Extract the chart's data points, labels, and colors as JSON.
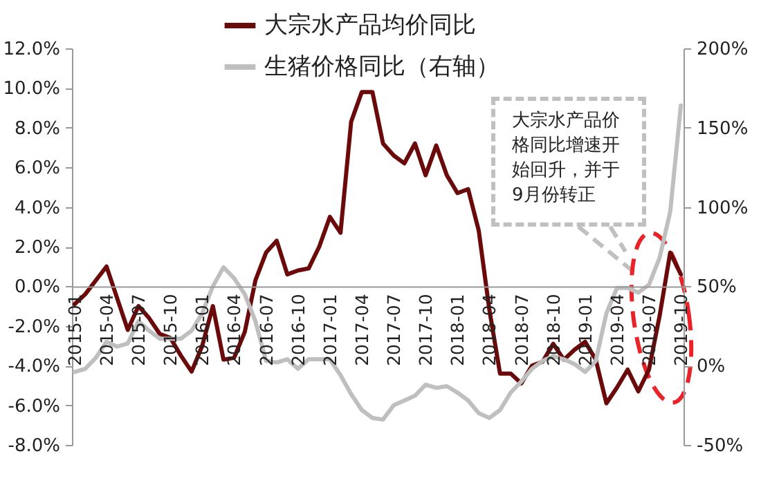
{
  "chart_data": {
    "type": "line",
    "categories": [
      "2015-01",
      null,
      null,
      "2015-04",
      null,
      null,
      "2015-07",
      null,
      null,
      "2015-10",
      null,
      null,
      "2016-01",
      null,
      null,
      "2016-04",
      null,
      null,
      "2016-07",
      null,
      null,
      "2016-10",
      null,
      null,
      "2017-01",
      null,
      null,
      "2017-04",
      null,
      null,
      "2017-07",
      null,
      null,
      "2017-10",
      null,
      null,
      "2018-01",
      null,
      null,
      "2018-04",
      null,
      null,
      "2018-07",
      null,
      null,
      "2018-10",
      null,
      null,
      "2019-01",
      null,
      null,
      "2019-04",
      null,
      null,
      "2019-07",
      null,
      null,
      "2019-10"
    ],
    "series": [
      {
        "name": "大宗水产品均价同比",
        "color": "#6b0a0a",
        "values": [
          -0.9,
          -0.4,
          0.3,
          1.0,
          -0.6,
          -2.2,
          -1.0,
          -1.6,
          -2.4,
          -2.6,
          -3.5,
          -4.3,
          -3.0,
          -1.0,
          -3.7,
          -3.6,
          -2.3,
          0.3,
          1.7,
          2.3,
          0.6,
          0.8,
          0.9,
          2.0,
          3.5,
          2.7,
          8.3,
          9.8,
          9.8,
          7.2,
          6.6,
          6.2,
          7.2,
          5.6,
          7.1,
          5.6,
          4.7,
          4.9,
          2.8,
          -1.2,
          -4.4,
          -4.4,
          -4.9,
          -4.0,
          -3.8,
          -2.9,
          -3.7,
          -3.2,
          -2.8,
          -3.7,
          -5.9,
          -5.1,
          -4.2,
          -5.3,
          -4.2,
          -1.5,
          1.7,
          0.6
        ]
      },
      {
        "name": "生猪价格同比（右轴）",
        "color": "#bfbfbf",
        "axis": "y2",
        "values": [
          -4,
          -2,
          5,
          15,
          12,
          14,
          28,
          22,
          17,
          17,
          17,
          22,
          33,
          50,
          62,
          55,
          45,
          28,
          3,
          2,
          4,
          -2,
          4,
          4,
          4,
          -6,
          -18,
          -28,
          -33,
          -34,
          -25,
          -22,
          -19,
          -12,
          -14,
          -13,
          -17,
          -22,
          -30,
          -33,
          -28,
          -17,
          -10,
          -2,
          3,
          6,
          4,
          1,
          -4,
          3,
          33,
          49,
          49,
          46,
          51,
          68,
          97,
          164
        ]
      }
    ],
    "ylim": [
      -8,
      12
    ],
    "yticks": [
      {
        "value": -8,
        "label": "-8.0%"
      },
      {
        "value": -6,
        "label": "-6.0%"
      },
      {
        "value": -4,
        "label": "-4.0%"
      },
      {
        "value": -2,
        "label": "-2.0%"
      },
      {
        "value": 0,
        "label": "0.0%"
      },
      {
        "value": 2,
        "label": "2.0%"
      },
      {
        "value": 4,
        "label": "4.0%"
      },
      {
        "value": 6,
        "label": "6.0%"
      },
      {
        "value": 8,
        "label": "8.0%"
      },
      {
        "value": 10,
        "label": "10.0%"
      },
      {
        "value": 12,
        "label": "12.0%"
      }
    ],
    "y2lim": [
      -50,
      200
    ],
    "y2ticks": [
      {
        "value": -50,
        "label": "-50%"
      },
      {
        "value": 0,
        "label": "0%"
      },
      {
        "value": 50,
        "label": "50%"
      },
      {
        "value": 100,
        "label": "100%"
      },
      {
        "value": 150,
        "label": "150%"
      },
      {
        "value": 200,
        "label": "200%"
      }
    ],
    "legend": "top",
    "annotations": [
      "大宗水产品价格同比增速开始回升，并于9月份转正"
    ]
  }
}
